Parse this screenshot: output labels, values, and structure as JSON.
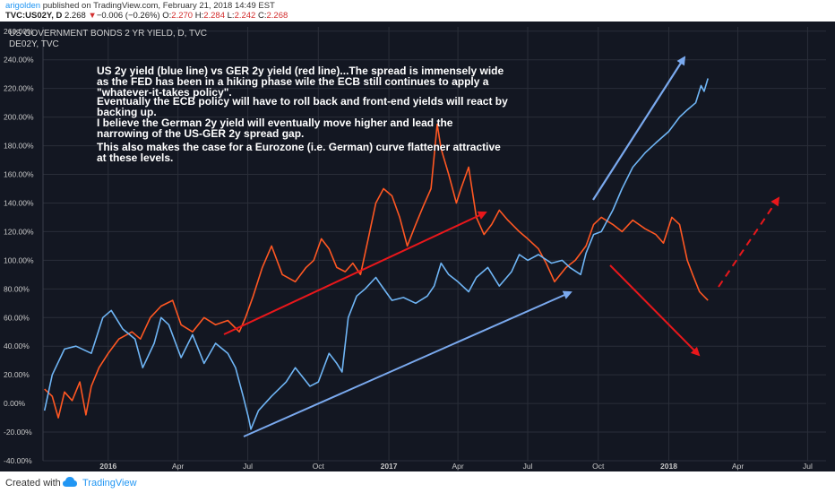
{
  "header": {
    "author": "arigolden",
    "published": " published on TradingView.com, February 21, 2018 14:49 EST",
    "symbol": "TVC:US02Y, D",
    "last": "2.268",
    "change_arrow": "▼",
    "change": "−0.006 (−0.26%)",
    "open_label": "O:",
    "open": "2.270",
    "high_label": "H:",
    "high": "2.284",
    "low_label": "L:",
    "low": "2.242",
    "close_label": "C:",
    "close": "2.268"
  },
  "legend": {
    "series1": "US GOVERNMENT BONDS 2 YR YIELD, D, TVC",
    "series2": "DE02Y, TVC"
  },
  "annotation": {
    "p1": [
      "US 2y yield (blue line) vs GER 2y yield (red line)...The spread is immensely wide",
      "as the FED has been in a hiking phase wile the ECB still continues to apply a",
      "\"whatever-it-takes policy\"."
    ],
    "p2": [
      "Eventually the ECB policy will have to roll back and front-end yields will react by",
      "backing up."
    ],
    "p3": [
      "I believe the German 2y yield will eventually move higher and lead the",
      "narrowing of the US-GER 2y spread gap."
    ],
    "p4": [
      "This also makes the case for a Eurozone (i.e. German) curve flattener attractive",
      "at these levels."
    ]
  },
  "footer": {
    "created": "Created with",
    "brand": "TradingView"
  },
  "colors": {
    "bg": "#131722",
    "grid": "#2a2e39",
    "blue": "#6fb5f5",
    "red": "#ff5722",
    "arrow_blue": "#7aa9ee",
    "arrow_red": "#e8171b",
    "axis_text": "#c8c8c8"
  },
  "chart_data": {
    "type": "line",
    "title": "US GOVERNMENT BONDS 2 YR YIELD, D, TVC",
    "x_tick_labels": [
      "2016",
      "Apr",
      "Jul",
      "Oct",
      "2017",
      "Apr",
      "Jul",
      "Oct",
      "2018",
      "Apr",
      "Jul"
    ],
    "x_tick_dates": [
      "2016-01",
      "2016-04",
      "2016-07",
      "2016-10",
      "2017-01",
      "2017-04",
      "2017-07",
      "2017-10",
      "2018-01",
      "2018-04",
      "2018-07"
    ],
    "y_tick_labels": [
      "260.00%",
      "240.00%",
      "220.00%",
      "200.00%",
      "180.00%",
      "160.00%",
      "140.00%",
      "120.00%",
      "100.00%",
      "80.00%",
      "60.00%",
      "40.00%",
      "20.00%",
      "0.00%",
      "-20.00%",
      "-40.00%"
    ],
    "y_ticks": [
      260,
      240,
      220,
      200,
      180,
      160,
      140,
      120,
      100,
      80,
      60,
      40,
      20,
      0,
      -20,
      -40
    ],
    "ylim": [
      -40,
      263
    ],
    "xlim": [
      "2015-10-08",
      "2018-07-25"
    ],
    "grid": true,
    "series": [
      {
        "name": "US GOVERNMENT BONDS 2 YR YIELD, D, TVC",
        "color": "#6fb5f5",
        "points": [
          [
            "2015-10-10",
            -5
          ],
          [
            "2015-10-20",
            20
          ],
          [
            "2015-11-05",
            38
          ],
          [
            "2015-11-20",
            40
          ],
          [
            "2015-12-10",
            35
          ],
          [
            "2015-12-25",
            60
          ],
          [
            "2016-01-05",
            65
          ],
          [
            "2016-01-20",
            52
          ],
          [
            "2016-02-05",
            45
          ],
          [
            "2016-02-15",
            25
          ],
          [
            "2016-03-01",
            42
          ],
          [
            "2016-03-10",
            60
          ],
          [
            "2016-03-20",
            55
          ],
          [
            "2016-04-05",
            32
          ],
          [
            "2016-04-20",
            48
          ],
          [
            "2016-05-05",
            28
          ],
          [
            "2016-05-20",
            42
          ],
          [
            "2016-06-05",
            35
          ],
          [
            "2016-06-15",
            25
          ],
          [
            "2016-06-25",
            5
          ],
          [
            "2016-07-02",
            -10
          ],
          [
            "2016-07-05",
            -18
          ],
          [
            "2016-07-15",
            -5
          ],
          [
            "2016-08-01",
            5
          ],
          [
            "2016-08-20",
            15
          ],
          [
            "2016-09-01",
            25
          ],
          [
            "2016-09-20",
            12
          ],
          [
            "2016-10-01",
            15
          ],
          [
            "2016-10-15",
            35
          ],
          [
            "2016-10-25",
            28
          ],
          [
            "2016-11-01",
            22
          ],
          [
            "2016-11-09",
            60
          ],
          [
            "2016-11-20",
            75
          ],
          [
            "2016-12-01",
            80
          ],
          [
            "2016-12-15",
            88
          ],
          [
            "2016-12-20",
            84
          ],
          [
            "2017-01-05",
            72
          ],
          [
            "2017-01-20",
            74
          ],
          [
            "2017-02-05",
            70
          ],
          [
            "2017-02-20",
            75
          ],
          [
            "2017-03-01",
            82
          ],
          [
            "2017-03-10",
            98
          ],
          [
            "2017-03-20",
            90
          ],
          [
            "2017-04-01",
            85
          ],
          [
            "2017-04-15",
            78
          ],
          [
            "2017-04-25",
            88
          ],
          [
            "2017-05-10",
            95
          ],
          [
            "2017-05-25",
            82
          ],
          [
            "2017-06-10",
            92
          ],
          [
            "2017-06-20",
            104
          ],
          [
            "2017-07-01",
            100
          ],
          [
            "2017-07-15",
            104
          ],
          [
            "2017-08-01",
            98
          ],
          [
            "2017-08-15",
            100
          ],
          [
            "2017-08-25",
            95
          ],
          [
            "2017-09-08",
            90
          ],
          [
            "2017-09-15",
            105
          ],
          [
            "2017-09-25",
            118
          ],
          [
            "2017-10-05",
            120
          ],
          [
            "2017-10-20",
            135
          ],
          [
            "2017-11-01",
            150
          ],
          [
            "2017-11-15",
            165
          ],
          [
            "2017-12-01",
            175
          ],
          [
            "2017-12-15",
            182
          ],
          [
            "2018-01-01",
            190
          ],
          [
            "2018-01-15",
            200
          ],
          [
            "2018-01-25",
            205
          ],
          [
            "2018-02-05",
            210
          ],
          [
            "2018-02-12",
            222
          ],
          [
            "2018-02-16",
            218
          ],
          [
            "2018-02-21",
            227
          ]
        ]
      },
      {
        "name": "DE02Y, TVC",
        "color": "#ff5722",
        "points": [
          [
            "2015-10-10",
            10
          ],
          [
            "2015-10-20",
            5
          ],
          [
            "2015-10-28",
            -10
          ],
          [
            "2015-11-05",
            8
          ],
          [
            "2015-11-15",
            2
          ],
          [
            "2015-11-25",
            15
          ],
          [
            "2015-12-03",
            -8
          ],
          [
            "2015-12-10",
            12
          ],
          [
            "2015-12-20",
            25
          ],
          [
            "2016-01-01",
            35
          ],
          [
            "2016-01-15",
            45
          ],
          [
            "2016-02-01",
            50
          ],
          [
            "2016-02-12",
            45
          ],
          [
            "2016-02-25",
            60
          ],
          [
            "2016-03-10",
            68
          ],
          [
            "2016-03-25",
            72
          ],
          [
            "2016-04-05",
            55
          ],
          [
            "2016-04-20",
            50
          ],
          [
            "2016-05-05",
            60
          ],
          [
            "2016-05-20",
            55
          ],
          [
            "2016-06-05",
            58
          ],
          [
            "2016-06-20",
            50
          ],
          [
            "2016-06-28",
            60
          ],
          [
            "2016-07-08",
            75
          ],
          [
            "2016-07-20",
            95
          ],
          [
            "2016-08-01",
            110
          ],
          [
            "2016-08-15",
            90
          ],
          [
            "2016-09-01",
            85
          ],
          [
            "2016-09-15",
            95
          ],
          [
            "2016-09-25",
            100
          ],
          [
            "2016-10-05",
            115
          ],
          [
            "2016-10-15",
            108
          ],
          [
            "2016-10-25",
            95
          ],
          [
            "2016-11-05",
            92
          ],
          [
            "2016-11-15",
            98
          ],
          [
            "2016-11-25",
            90
          ],
          [
            "2016-12-05",
            115
          ],
          [
            "2016-12-15",
            140
          ],
          [
            "2016-12-25",
            150
          ],
          [
            "2017-01-05",
            145
          ],
          [
            "2017-01-15",
            130
          ],
          [
            "2017-01-25",
            110
          ],
          [
            "2017-02-05",
            125
          ],
          [
            "2017-02-15",
            138
          ],
          [
            "2017-02-25",
            150
          ],
          [
            "2017-03-05",
            195
          ],
          [
            "2017-03-10",
            178
          ],
          [
            "2017-03-20",
            160
          ],
          [
            "2017-03-30",
            140
          ],
          [
            "2017-04-05",
            150
          ],
          [
            "2017-04-15",
            165
          ],
          [
            "2017-04-25",
            130
          ],
          [
            "2017-05-05",
            118
          ],
          [
            "2017-05-15",
            125
          ],
          [
            "2017-05-25",
            135
          ],
          [
            "2017-06-05",
            128
          ],
          [
            "2017-06-20",
            120
          ],
          [
            "2017-07-01",
            115
          ],
          [
            "2017-07-15",
            108
          ],
          [
            "2017-07-25",
            98
          ],
          [
            "2017-08-05",
            85
          ],
          [
            "2017-08-20",
            95
          ],
          [
            "2017-09-01",
            100
          ],
          [
            "2017-09-15",
            110
          ],
          [
            "2017-09-25",
            125
          ],
          [
            "2017-10-05",
            130
          ],
          [
            "2017-10-20",
            125
          ],
          [
            "2017-11-01",
            120
          ],
          [
            "2017-11-15",
            128
          ],
          [
            "2017-12-01",
            122
          ],
          [
            "2017-12-15",
            118
          ],
          [
            "2017-12-25",
            112
          ],
          [
            "2018-01-05",
            130
          ],
          [
            "2018-01-15",
            125
          ],
          [
            "2018-01-25",
            100
          ],
          [
            "2018-02-01",
            90
          ],
          [
            "2018-02-10",
            78
          ],
          [
            "2018-02-21",
            72
          ]
        ]
      }
    ]
  }
}
